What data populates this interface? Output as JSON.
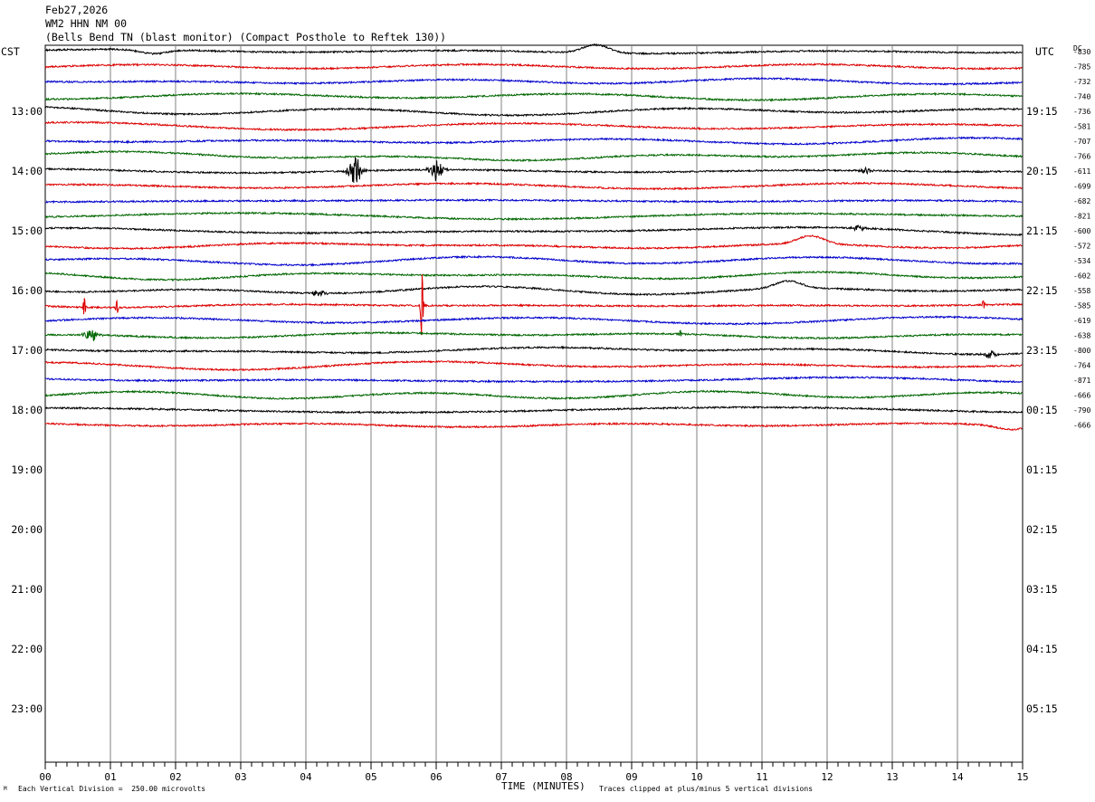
{
  "header": {
    "date": "Feb27,2026",
    "station": "WM2 HHN NM 00",
    "description": "(Bells Bend TN (blast monitor) (Compact Posthole to Reftek 130))"
  },
  "labels": {
    "left_tz": "CST",
    "right_tz": "UTC",
    "dc": "DC",
    "xlabel": "TIME (MINUTES)",
    "scale_note": "Each Vertical Division =  250.00 microvolts",
    "clip_note": "Traces clipped at plus/minus 5 vertical divisions",
    "corner_mark": "M"
  },
  "colors": {
    "cycle": [
      "#000000",
      "#dd0000",
      "#0000cc",
      "#006600"
    ],
    "grid": "#808080"
  },
  "chart_data": {
    "type": "line",
    "title": "WM2 HHN NM 00",
    "xlabel": "TIME (MINUTES)",
    "xlim": [
      0,
      15
    ],
    "x_ticks": [
      "00",
      "01",
      "02",
      "03",
      "04",
      "05",
      "06",
      "07",
      "08",
      "09",
      "10",
      "11",
      "12",
      "13",
      "14",
      "15"
    ],
    "left_hour_labels": [
      "13:00",
      "14:00",
      "15:00",
      "16:00",
      "17:00",
      "18:00",
      "19:00",
      "20:00",
      "21:00",
      "22:00",
      "23:00"
    ],
    "right_hour_labels": [
      "19:15",
      "20:15",
      "21:15",
      "22:15",
      "23:15",
      "00:15",
      "01:15",
      "02:15",
      "03:15",
      "04:15",
      "05:15"
    ],
    "dc_offsets": [
      "-830",
      "-785",
      "-732",
      "-740",
      "-736",
      "-581",
      "-707",
      "-766",
      "-611",
      "-699",
      "-682",
      "-821",
      "-600",
      "-572",
      "-534",
      "-602",
      "-558",
      "-585",
      "-619",
      "-638",
      "-800",
      "-764",
      "-871",
      "-666",
      "-790",
      "-666"
    ],
    "events": [
      {
        "trace": 0,
        "minute": 8.45,
        "kind": "bump",
        "amp": 1.0
      },
      {
        "trace": 0,
        "minute": 1.65,
        "kind": "bump",
        "amp": -0.5
      },
      {
        "trace": 8,
        "minute": 4.75,
        "kind": "burst",
        "amp": 1.3
      },
      {
        "trace": 8,
        "minute": 6.0,
        "kind": "burst",
        "amp": 0.9
      },
      {
        "trace": 8,
        "minute": 12.6,
        "kind": "burst",
        "amp": 0.3
      },
      {
        "trace": 12,
        "minute": 12.5,
        "kind": "burst",
        "amp": 0.25
      },
      {
        "trace": 13,
        "minute": 11.75,
        "kind": "bump",
        "amp": 1.0
      },
      {
        "trace": 16,
        "minute": 11.4,
        "kind": "bump",
        "amp": 0.9
      },
      {
        "trace": 16,
        "minute": 4.2,
        "kind": "burst",
        "amp": 0.35
      },
      {
        "trace": 17,
        "minute": 5.78,
        "kind": "spike",
        "amp": 5.0
      },
      {
        "trace": 17,
        "minute": 0.6,
        "kind": "spike",
        "amp": 1.4
      },
      {
        "trace": 17,
        "minute": 1.1,
        "kind": "spike",
        "amp": 0.9
      },
      {
        "trace": 17,
        "minute": 14.4,
        "kind": "spike",
        "amp": 0.7
      },
      {
        "trace": 19,
        "minute": 0.7,
        "kind": "burst",
        "amp": 0.55
      },
      {
        "trace": 19,
        "minute": 9.75,
        "kind": "spike",
        "amp": 0.5
      },
      {
        "trace": 20,
        "minute": 14.5,
        "kind": "burst",
        "amp": 0.4
      },
      {
        "trace": 25,
        "minute": 14.8,
        "kind": "bump",
        "amp": -0.5
      }
    ]
  }
}
